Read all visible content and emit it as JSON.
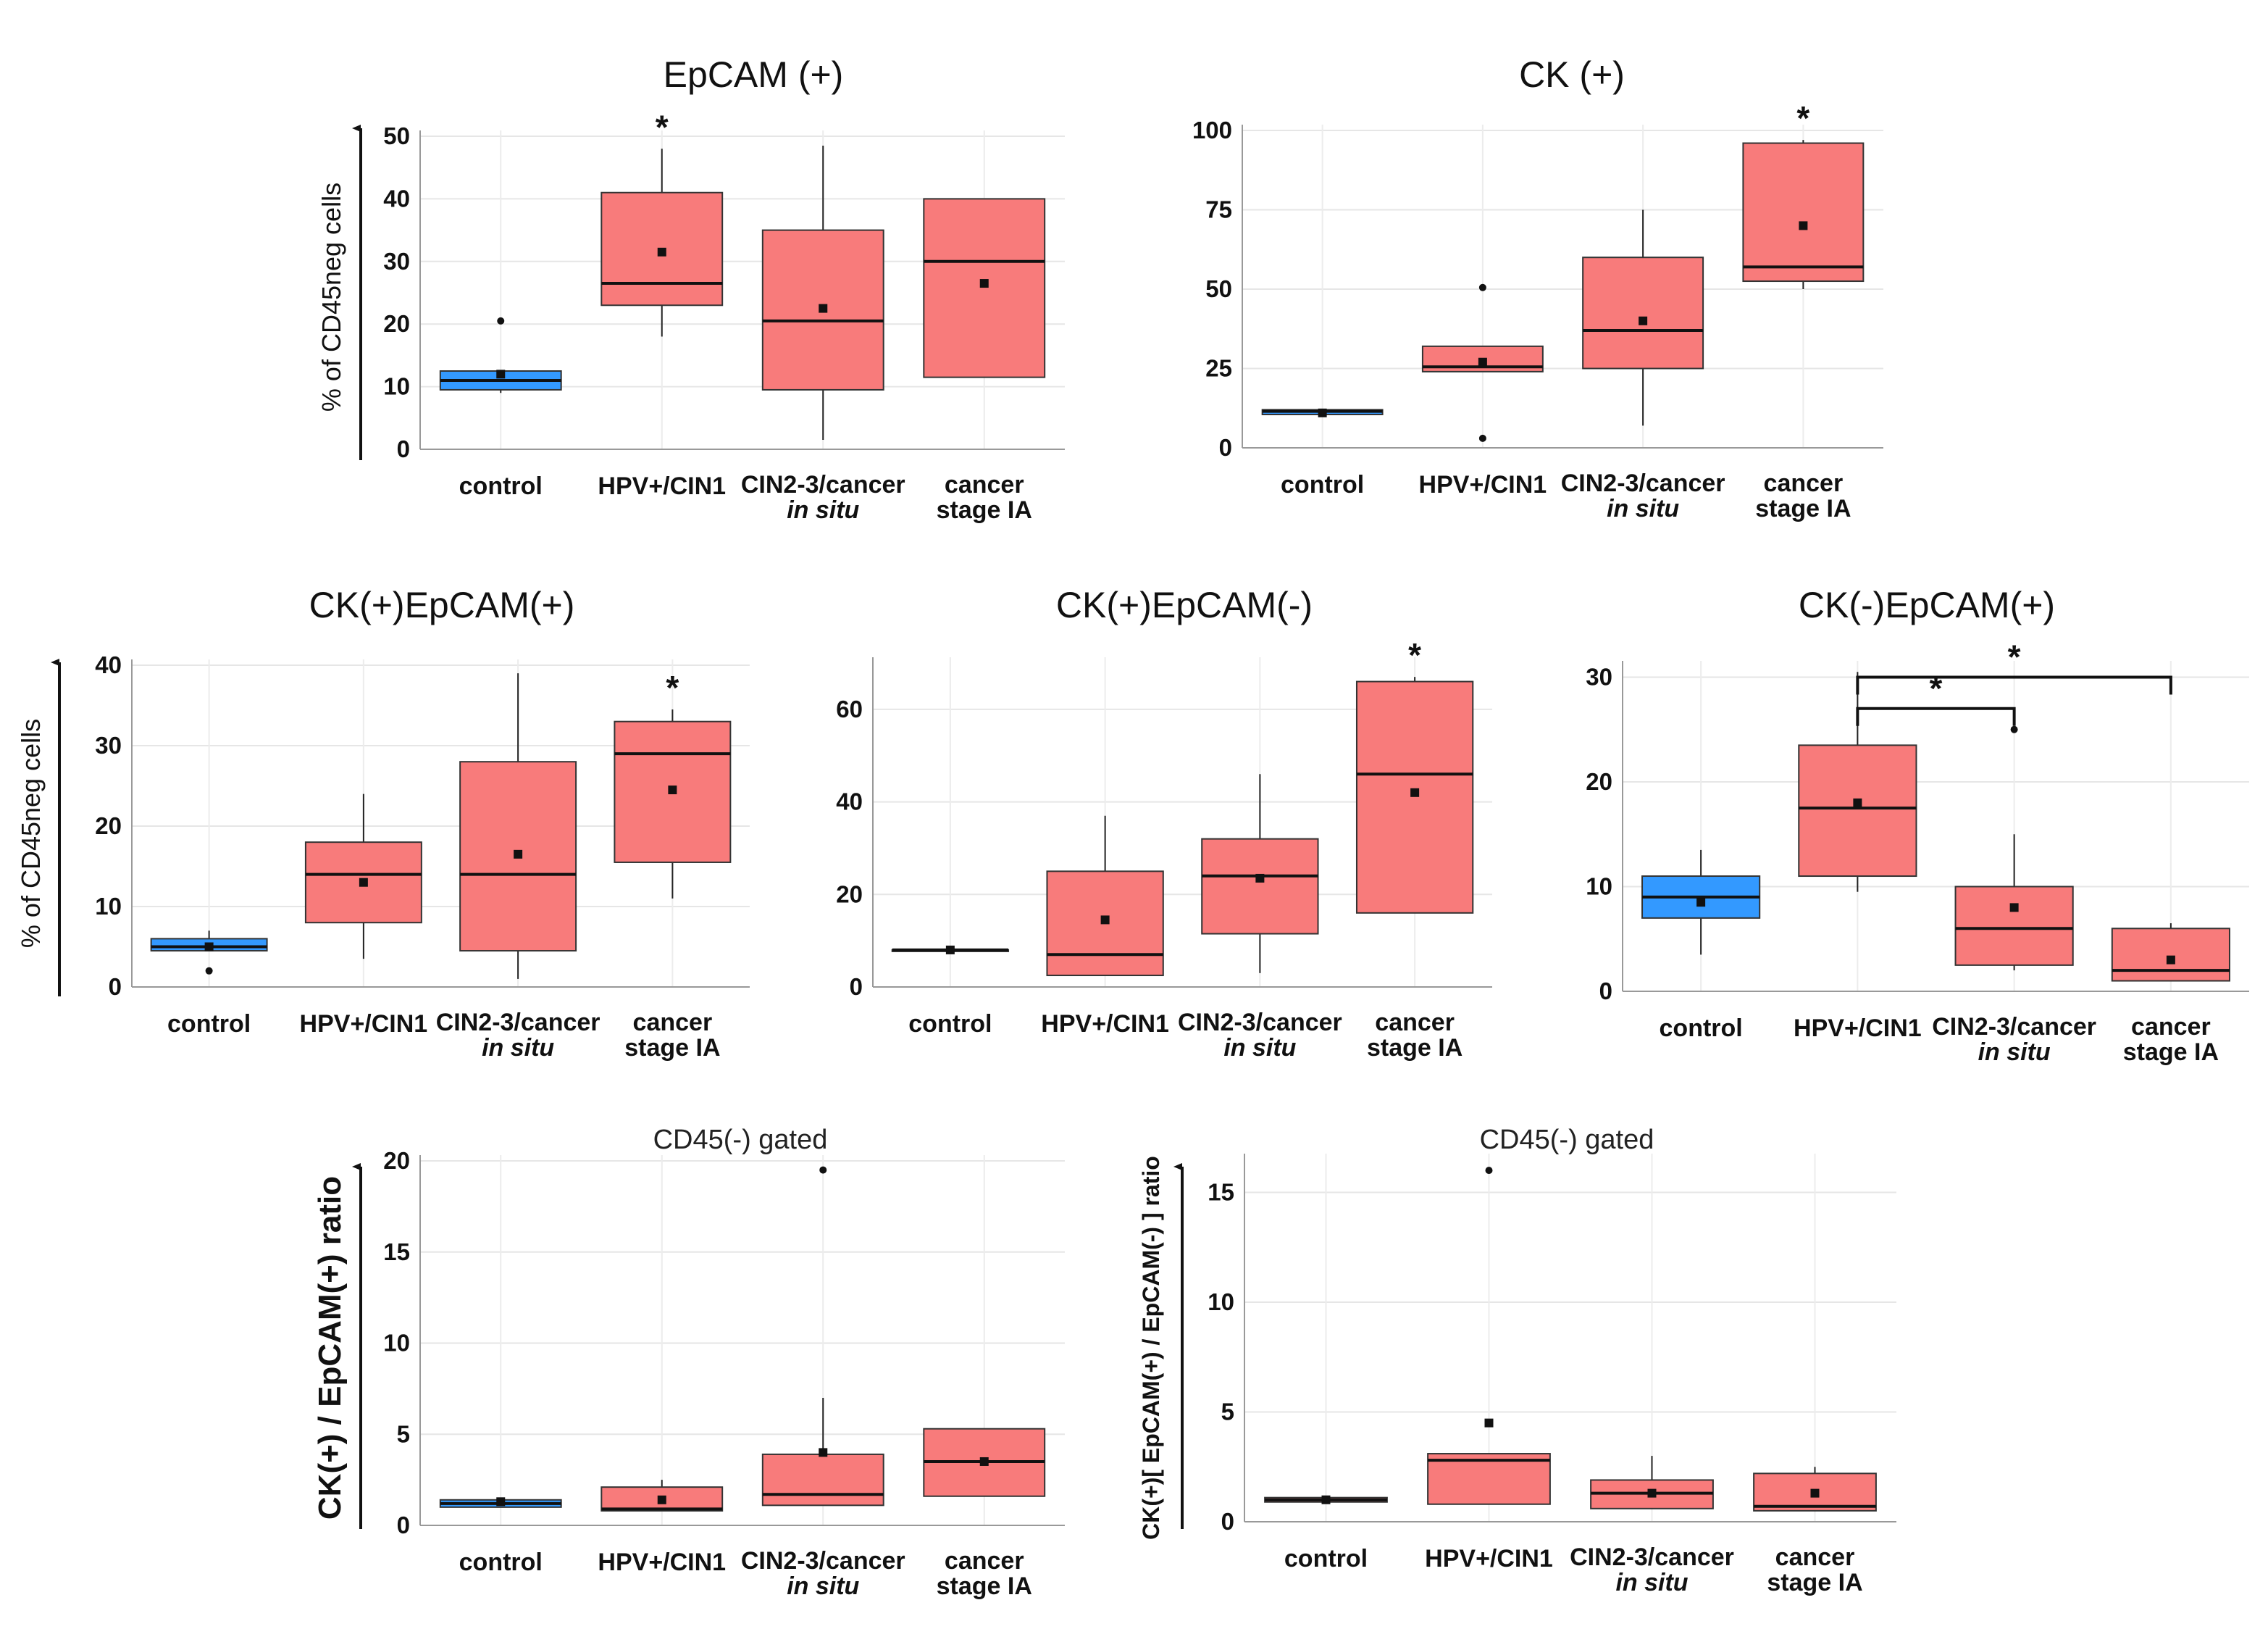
{
  "chart_data": [
    {
      "id": "epcam",
      "type": "box",
      "title": "EpCAM (+)",
      "ylabel": "% of CD45neg cells",
      "ylim": [
        0,
        50
      ],
      "yticks": [
        "0",
        "10",
        "20",
        "30",
        "40",
        "50"
      ],
      "categories": [
        {
          "line1": "control",
          "line2": ""
        },
        {
          "line1": "HPV+/CIN1",
          "line2": ""
        },
        {
          "line1": "CIN2-3/cancer",
          "line2": "in situ"
        },
        {
          "line1": "cancer",
          "line2": "stage IA"
        }
      ],
      "boxes": [
        {
          "q1": 9.5,
          "median": 11,
          "q3": 12.5,
          "min": 9,
          "max": 12.5,
          "mean": 12,
          "outliers": [
            20.5
          ],
          "color": "#3399ff"
        },
        {
          "q1": 23,
          "median": 26.5,
          "q3": 41,
          "min": 18,
          "max": 48,
          "mean": 31.5,
          "outliers": [],
          "color": "#f87b7b"
        },
        {
          "q1": 9.5,
          "median": 20.5,
          "q3": 35,
          "min": 1.5,
          "max": 48.5,
          "mean": 22.5,
          "outliers": [],
          "color": "#f87b7b"
        },
        {
          "q1": 11.5,
          "median": 30,
          "q3": 40,
          "min": 11.5,
          "max": 40,
          "mean": 26.5,
          "outliers": [],
          "color": "#f87b7b"
        }
      ],
      "significance": [
        {
          "text": "*",
          "category": 1
        }
      ]
    },
    {
      "id": "ck",
      "type": "box",
      "title": "CK (+)",
      "ylabel": "",
      "ylim": [
        0,
        100
      ],
      "yticks": [
        "0",
        "25",
        "50",
        "75",
        "100"
      ],
      "categories": [
        {
          "line1": "control",
          "line2": ""
        },
        {
          "line1": "HPV+/CIN1",
          "line2": ""
        },
        {
          "line1": "CIN2-3/cancer",
          "line2": "in situ"
        },
        {
          "line1": "cancer",
          "line2": "stage IA"
        }
      ],
      "boxes": [
        {
          "q1": 10.5,
          "median": 11.5,
          "q3": 12,
          "min": 10.5,
          "max": 12,
          "mean": 11,
          "outliers": [],
          "color": "#3399ff"
        },
        {
          "q1": 24,
          "median": 25.5,
          "q3": 32,
          "min": 24,
          "max": 32,
          "mean": 27,
          "outliers": [
            50.5,
            3
          ],
          "color": "#f87b7b"
        },
        {
          "q1": 25,
          "median": 37,
          "q3": 60,
          "min": 7,
          "max": 75,
          "mean": 40,
          "outliers": [],
          "color": "#f87b7b"
        },
        {
          "q1": 52.5,
          "median": 57,
          "q3": 96,
          "min": 50,
          "max": 97,
          "mean": 70,
          "outliers": [],
          "color": "#f87b7b"
        }
      ],
      "significance": [
        {
          "text": "*",
          "category": 3
        }
      ]
    },
    {
      "id": "ckep",
      "type": "box",
      "title": "CK(+)EpCAM(+)",
      "ylabel": "% of CD45neg cells",
      "ylim": [
        0,
        40
      ],
      "yticks": [
        "0",
        "10",
        "20",
        "30",
        "40"
      ],
      "categories": [
        {
          "line1": "control",
          "line2": ""
        },
        {
          "line1": "HPV+/CIN1",
          "line2": ""
        },
        {
          "line1": "CIN2-3/cancer",
          "line2": "in situ"
        },
        {
          "line1": "cancer",
          "line2": "stage IA"
        }
      ],
      "boxes": [
        {
          "q1": 4.5,
          "median": 5,
          "q3": 6,
          "min": 4.5,
          "max": 7,
          "mean": 5,
          "outliers": [
            2
          ],
          "color": "#3399ff"
        },
        {
          "q1": 8,
          "median": 14,
          "q3": 18,
          "min": 3.5,
          "max": 24,
          "mean": 13,
          "outliers": [],
          "color": "#f87b7b"
        },
        {
          "q1": 4.5,
          "median": 14,
          "q3": 28,
          "min": 1,
          "max": 39,
          "mean": 16.5,
          "outliers": [],
          "color": "#f87b7b"
        },
        {
          "q1": 15.5,
          "median": 29,
          "q3": 33,
          "min": 11,
          "max": 34.5,
          "mean": 24.5,
          "outliers": [],
          "color": "#f87b7b"
        }
      ],
      "significance": [
        {
          "text": "*",
          "category": 3
        }
      ]
    },
    {
      "id": "ckepneg",
      "type": "box",
      "title": "CK(+)EpCAM(-)",
      "ylabel": "",
      "ylim": [
        0,
        70
      ],
      "yticks": [
        "0",
        "20",
        "40",
        "60"
      ],
      "categories": [
        {
          "line1": "control",
          "line2": ""
        },
        {
          "line1": "HPV+/CIN1",
          "line2": ""
        },
        {
          "line1": "CIN2-3/cancer",
          "line2": "in situ"
        },
        {
          "line1": "cancer",
          "line2": "stage IA"
        }
      ],
      "boxes": [
        {
          "q1": 8,
          "median": 8,
          "q3": 8,
          "min": 8,
          "max": 8,
          "mean": 8,
          "outliers": [],
          "color": "#3399ff"
        },
        {
          "q1": 2.5,
          "median": 7,
          "q3": 25,
          "min": 2.5,
          "max": 37,
          "mean": 14.5,
          "outliers": [],
          "color": "#f87b7b"
        },
        {
          "q1": 11.5,
          "median": 24,
          "q3": 32,
          "min": 3,
          "max": 46,
          "mean": 23.5,
          "outliers": [],
          "color": "#f87b7b"
        },
        {
          "q1": 16,
          "median": 46,
          "q3": 66,
          "min": 16,
          "max": 67,
          "mean": 42,
          "outliers": [],
          "color": "#f87b7b"
        }
      ],
      "significance": [
        {
          "text": "*",
          "category": 3
        }
      ]
    },
    {
      "id": "cknegep",
      "type": "box",
      "title": "CK(-)EpCAM(+)",
      "ylabel": "",
      "ylim": [
        0,
        31
      ],
      "yticks": [
        "0",
        "10",
        "20",
        "30"
      ],
      "categories": [
        {
          "line1": "control",
          "line2": ""
        },
        {
          "line1": "HPV+/CIN1",
          "line2": ""
        },
        {
          "line1": "CIN2-3/cancer",
          "line2": "in situ"
        },
        {
          "line1": "cancer",
          "line2": "stage IA"
        }
      ],
      "boxes": [
        {
          "q1": 7,
          "median": 9,
          "q3": 11,
          "min": 3.5,
          "max": 13.5,
          "mean": 8.5,
          "outliers": [],
          "color": "#3399ff"
        },
        {
          "q1": 11,
          "median": 17.5,
          "q3": 23.5,
          "min": 9.5,
          "max": 30.5,
          "mean": 18,
          "outliers": [],
          "color": "#f87b7b"
        },
        {
          "q1": 2.5,
          "median": 6,
          "q3": 10,
          "min": 2,
          "max": 15,
          "mean": 8,
          "outliers": [
            25
          ],
          "color": "#f87b7b"
        },
        {
          "q1": 1,
          "median": 2,
          "q3": 6,
          "min": 1,
          "max": 6.5,
          "mean": 3,
          "outliers": [],
          "color": "#f87b7b"
        }
      ],
      "brackets": [
        {
          "from": 1,
          "to": 2,
          "y": 27,
          "text": "*"
        },
        {
          "from": 1,
          "to": 3,
          "y": 30,
          "text": "*"
        }
      ],
      "significance": []
    },
    {
      "id": "ratio1",
      "type": "box",
      "title": "CD45(-) gated",
      "ylabel": "CK(+) / EpCAM(+) ratio",
      "ylim": [
        0,
        20
      ],
      "yticks": [
        "0",
        "5",
        "10",
        "15",
        "20"
      ],
      "categories": [
        {
          "line1": "control",
          "line2": ""
        },
        {
          "line1": "HPV+/CIN1",
          "line2": ""
        },
        {
          "line1": "CIN2-3/cancer",
          "line2": "in situ"
        },
        {
          "line1": "cancer",
          "line2": "stage IA"
        }
      ],
      "boxes": [
        {
          "q1": 1,
          "median": 1.2,
          "q3": 1.4,
          "min": 1,
          "max": 1.4,
          "mean": 1.3,
          "outliers": [],
          "color": "#3399ff"
        },
        {
          "q1": 0.8,
          "median": 0.9,
          "q3": 2.1,
          "min": 0.8,
          "max": 2.5,
          "mean": 1.4,
          "outliers": [],
          "color": "#f87b7b"
        },
        {
          "q1": 1.1,
          "median": 1.7,
          "q3": 3.9,
          "min": 1.1,
          "max": 7,
          "mean": 4,
          "outliers": [
            19.5
          ],
          "color": "#f87b7b"
        },
        {
          "q1": 1.6,
          "median": 3.5,
          "q3": 5.3,
          "min": 1.6,
          "max": 5.3,
          "mean": 3.5,
          "outliers": [],
          "color": "#f87b7b"
        }
      ],
      "significance": []
    },
    {
      "id": "ratio2",
      "type": "box",
      "title": "CD45(-) gated",
      "ylabel": "CK(+)[ EpCAM(+) / EpCAM(-) ] ratio",
      "ylim": [
        0,
        16.5
      ],
      "yticks": [
        "0",
        "5",
        "10",
        "15"
      ],
      "categories": [
        {
          "line1": "control",
          "line2": ""
        },
        {
          "line1": "HPV+/CIN1",
          "line2": ""
        },
        {
          "line1": "CIN2-3/cancer",
          "line2": "in situ"
        },
        {
          "line1": "cancer",
          "line2": "stage IA"
        }
      ],
      "boxes": [
        {
          "q1": 0.9,
          "median": 1,
          "q3": 1.1,
          "min": 0.9,
          "max": 1.1,
          "mean": 1,
          "outliers": [],
          "color": "#f87b7b"
        },
        {
          "q1": 0.8,
          "median": 2.8,
          "q3": 3.1,
          "min": 0.8,
          "max": 3.1,
          "mean": 4.5,
          "outliers": [
            16
          ],
          "color": "#f87b7b"
        },
        {
          "q1": 0.6,
          "median": 1.3,
          "q3": 1.9,
          "min": 0.6,
          "max": 3,
          "mean": 1.3,
          "outliers": [],
          "color": "#f87b7b"
        },
        {
          "q1": 0.5,
          "median": 0.7,
          "q3": 2.2,
          "min": 0.5,
          "max": 2.5,
          "mean": 1.3,
          "outliers": [],
          "color": "#f87b7b"
        }
      ],
      "significance": []
    }
  ]
}
